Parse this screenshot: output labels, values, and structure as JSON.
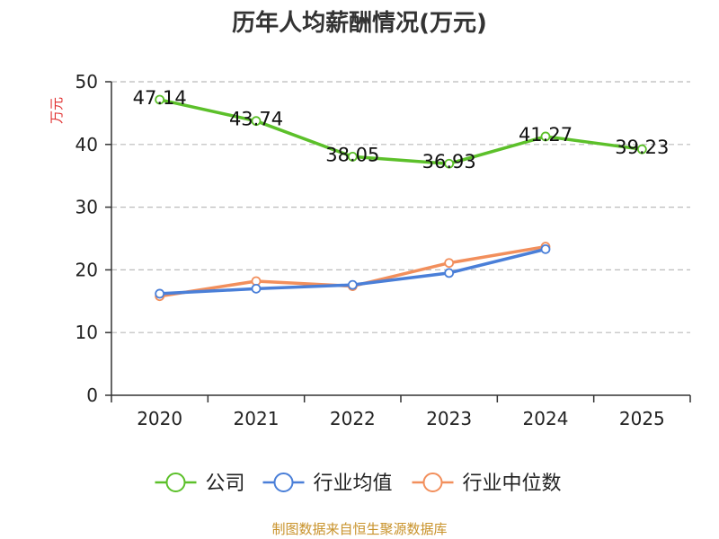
{
  "chart_data": {
    "type": "line",
    "title": "历年人均薪酬情况(万元)",
    "ylabel": "万元",
    "xlabel": "",
    "categories": [
      "2020",
      "2021",
      "2022",
      "2023",
      "2024",
      "2025"
    ],
    "ylim": [
      0,
      50
    ],
    "yticks": [
      0,
      10,
      20,
      30,
      40,
      50
    ],
    "grid": true,
    "legend_position": "bottom",
    "series": [
      {
        "name": "公司",
        "color": "#5cc02a",
        "values": [
          47.14,
          43.74,
          38.05,
          36.93,
          41.27,
          39.23
        ],
        "labels": [
          "47.14",
          "43.74",
          "38.05",
          "36.93",
          "41.27",
          "39.23"
        ]
      },
      {
        "name": "行业均值",
        "color": "#4a7fd8",
        "values": [
          16.2,
          17.0,
          17.6,
          19.5,
          23.3,
          null
        ]
      },
      {
        "name": "行业中位数",
        "color": "#f28f5c",
        "values": [
          15.8,
          18.2,
          17.4,
          21.1,
          23.7,
          null
        ]
      }
    ],
    "source": "制图数据来自恒生聚源数据库"
  },
  "colors": {
    "axis": "#333333",
    "grid": "#bbbbbb",
    "ylabel": "#e03030",
    "source": "#c8922a"
  }
}
